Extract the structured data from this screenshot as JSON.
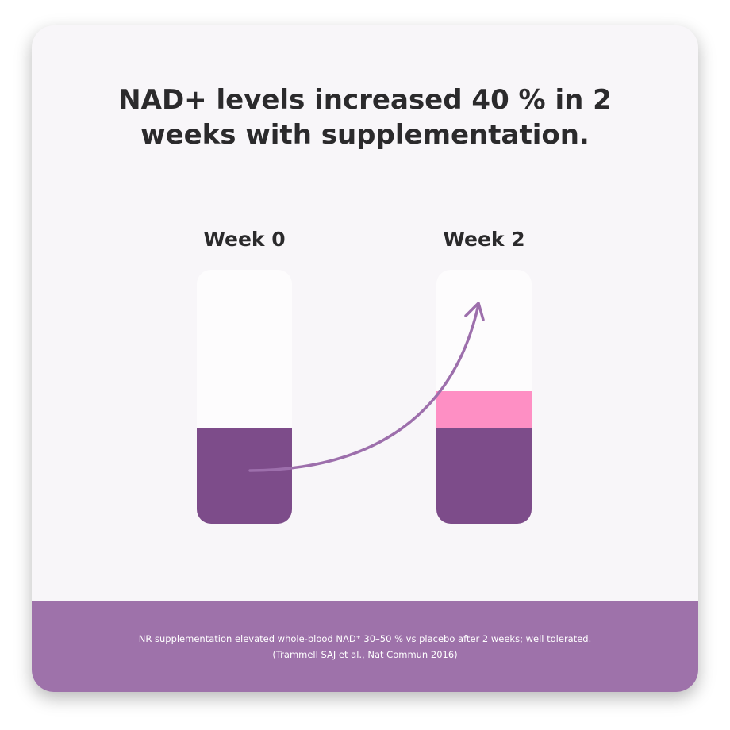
{
  "header": {
    "title": "NAD+ levels increased 40 % in 2 weeks with supplementation."
  },
  "columns": [
    {
      "label": "Week 0"
    },
    {
      "label": "Week 2"
    }
  ],
  "footer": {
    "note": "NR supplementation elevated whole-blood NAD⁺ 30–50 % vs placebo after 2 weeks; well tolerated.",
    "citation": "(Trammell SAJ et al., Nat Commun 2016)"
  }
}
